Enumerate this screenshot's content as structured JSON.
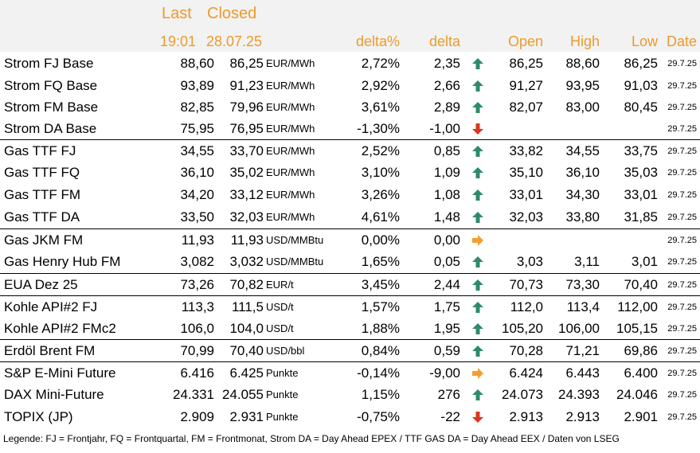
{
  "header": {
    "last": "Last",
    "closed": "Closed",
    "last_time": "19:01",
    "closed_date": "28.07.25",
    "delta_pct": "delta%",
    "delta": "delta",
    "open": "Open",
    "high": "High",
    "low": "Low",
    "date": "Date"
  },
  "colors": {
    "header_text": "#ed9a2c",
    "header_bg": "#f2f2f2",
    "up": "#2e8b6a",
    "down": "#d9381e",
    "flat": "#f0a030"
  },
  "rows": [
    {
      "name": "Strom FJ Base",
      "last": "88,60",
      "closed": "86,25",
      "unit": "EUR/MWh",
      "pct": "2,72%",
      "delta": "2,35",
      "trend": "up",
      "open": "86,25",
      "high": "88,60",
      "low": "86,25",
      "date": "29.7.25"
    },
    {
      "name": "Strom FQ Base",
      "last": "93,89",
      "closed": "91,23",
      "unit": "EUR/MWh",
      "pct": "2,92%",
      "delta": "2,66",
      "trend": "up",
      "open": "91,27",
      "high": "93,95",
      "low": "91,03",
      "date": "29.7.25"
    },
    {
      "name": "Strom FM Base",
      "last": "82,85",
      "closed": "79,96",
      "unit": "EUR/MWh",
      "pct": "3,61%",
      "delta": "2,89",
      "trend": "up",
      "open": "82,07",
      "high": "83,00",
      "low": "80,45",
      "date": "29.7.25"
    },
    {
      "name": "Strom DA Base",
      "last": "75,95",
      "closed": "76,95",
      "unit": "EUR/MWh",
      "pct": "-1,30%",
      "delta": "-1,00",
      "trend": "down",
      "open": "",
      "high": "",
      "low": "",
      "date": "29.7.25"
    },
    {
      "name": "Gas TTF FJ",
      "last": "34,55",
      "closed": "33,70",
      "unit": "EUR/MWh",
      "pct": "2,52%",
      "delta": "0,85",
      "trend": "up",
      "open": "33,82",
      "high": "34,55",
      "low": "33,75",
      "date": "29.7.25"
    },
    {
      "name": "Gas TTF FQ",
      "last": "36,10",
      "closed": "35,02",
      "unit": "EUR/MWh",
      "pct": "3,10%",
      "delta": "1,09",
      "trend": "up",
      "open": "35,10",
      "high": "36,10",
      "low": "35,03",
      "date": "29.7.25"
    },
    {
      "name": "Gas TTF FM",
      "last": "34,20",
      "closed": "33,12",
      "unit": "EUR/MWh",
      "pct": "3,26%",
      "delta": "1,08",
      "trend": "up",
      "open": "33,01",
      "high": "34,30",
      "low": "33,01",
      "date": "29.7.25"
    },
    {
      "name": "Gas TTF DA",
      "last": "33,50",
      "closed": "32,03",
      "unit": "EUR/MWh",
      "pct": "4,61%",
      "delta": "1,48",
      "trend": "up",
      "open": "32,03",
      "high": "33,80",
      "low": "31,85",
      "date": "29.7.25"
    },
    {
      "name": "Gas JKM FM",
      "last": "11,93",
      "closed": "11,93",
      "unit": "USD/MMBtu",
      "pct": "0,00%",
      "delta": "0,00",
      "trend": "flat",
      "open": "",
      "high": "",
      "low": "",
      "date": "29.7.25"
    },
    {
      "name": "Gas Henry Hub FM",
      "last": "3,082",
      "closed": "3,032",
      "unit": "USD/MMBtu",
      "pct": "1,65%",
      "delta": "0,05",
      "trend": "up",
      "open": "3,03",
      "high": "3,11",
      "low": "3,01",
      "date": "29.7.25"
    },
    {
      "name": "EUA Dez 25",
      "last": "73,26",
      "closed": "70,82",
      "unit": "EUR/t",
      "pct": "3,45%",
      "delta": "2,44",
      "trend": "up",
      "open": "70,73",
      "high": "73,30",
      "low": "70,40",
      "date": "29.7.25"
    },
    {
      "name": "Kohle API#2 FJ",
      "last": "113,3",
      "closed": "111,5",
      "unit": "USD/t",
      "pct": "1,57%",
      "delta": "1,75",
      "trend": "up",
      "open": "112,0",
      "high": "113,4",
      "low": "112,00",
      "date": "29.7.25"
    },
    {
      "name": "Kohle API#2 FMc2",
      "last": "106,0",
      "closed": "104,0",
      "unit": "USD/t",
      "pct": "1,88%",
      "delta": "1,95",
      "trend": "up",
      "open": "105,20",
      "high": "106,00",
      "low": "105,15",
      "date": "29.7.25"
    },
    {
      "name": "Erdöl Brent FM",
      "last": "70,99",
      "closed": "70,40",
      "unit": "USD/bbl",
      "pct": "0,84%",
      "delta": "0,59",
      "trend": "up",
      "open": "70,28",
      "high": "71,21",
      "low": "69,86",
      "date": "29.7.25"
    },
    {
      "name": "S&P E-Mini Future",
      "last": "6.416",
      "closed": "6.425",
      "unit": "Punkte",
      "pct": "-0,14%",
      "delta": "-9,00",
      "trend": "flat",
      "open": "6.424",
      "high": "6.443",
      "low": "6.400",
      "date": "29.7.25"
    },
    {
      "name": "DAX Mini-Future",
      "last": "24.331",
      "closed": "24.055",
      "unit": "Punkte",
      "pct": "1,15%",
      "delta": "276",
      "trend": "up",
      "open": "24.073",
      "high": "24.393",
      "low": "24.046",
      "date": "29.7.25"
    },
    {
      "name": "TOPIX (JP)",
      "last": "2.909",
      "closed": "2.931",
      "unit": "Punkte",
      "pct": "-0,75%",
      "delta": "-22",
      "trend": "down",
      "open": "2.913",
      "high": "2.913",
      "low": "2.901",
      "date": "29.7.25"
    }
  ],
  "legend": "Legende: FJ = Frontjahr, FQ = Frontquartal, FM = Frontmonat, Strom DA = Day Ahead EPEX / TTF GAS DA = Day Ahead EEX / Daten von LSEG"
}
